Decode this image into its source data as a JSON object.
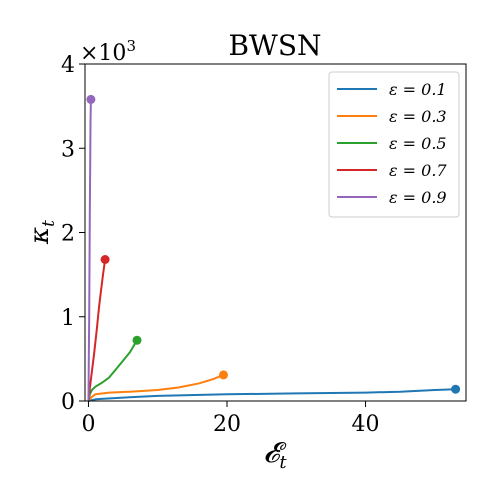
{
  "chart_data": {
    "type": "line",
    "title": "BWSN",
    "xlabel": "𝓔",
    "xlabel_sub": "t",
    "ylabel": "κ",
    "ylabel_sub": "t",
    "y_multiplier": "×10",
    "y_multiplier_exp": "3",
    "xlim": [
      -0.5,
      54.5
    ],
    "ylim": [
      0,
      4
    ],
    "xticks": [
      0,
      20,
      40
    ],
    "xtick_labels": [
      "0",
      "20",
      "40"
    ],
    "yticks": [
      0,
      1,
      2,
      3,
      4
    ],
    "ytick_labels": [
      "0",
      "1",
      "2",
      "3",
      "4"
    ],
    "grid": false,
    "legend_position": "top-right",
    "series": [
      {
        "name": "ε = 0.1",
        "color": "#1f77b4",
        "x": [
          0,
          1,
          5,
          10,
          20,
          30,
          40,
          45,
          50,
          53
        ],
        "y": [
          0.0,
          0.02,
          0.04,
          0.06,
          0.08,
          0.09,
          0.1,
          0.11,
          0.13,
          0.14
        ]
      },
      {
        "name": "ε = 0.3",
        "color": "#ff7f0e",
        "x": [
          0,
          0.5,
          1,
          3,
          6,
          10,
          13,
          16,
          18,
          19.5
        ],
        "y": [
          0.0,
          0.05,
          0.08,
          0.1,
          0.11,
          0.13,
          0.16,
          0.21,
          0.26,
          0.31
        ]
      },
      {
        "name": "ε = 0.5",
        "color": "#2ca02c",
        "x": [
          0,
          0.2,
          0.5,
          1,
          2,
          3,
          4,
          5,
          6,
          7
        ],
        "y": [
          0.0,
          0.08,
          0.13,
          0.17,
          0.22,
          0.28,
          0.38,
          0.48,
          0.58,
          0.72
        ]
      },
      {
        "name": "ε = 0.7",
        "color": "#d62728",
        "x": [
          0,
          0.2,
          0.5,
          0.8,
          1.2,
          1.5,
          1.8,
          2.1,
          2.4
        ],
        "y": [
          0.0,
          0.15,
          0.35,
          0.55,
          0.85,
          1.1,
          1.3,
          1.5,
          1.68
        ]
      },
      {
        "name": "ε = 0.9",
        "color": "#9467bd",
        "x": [
          0,
          0.05,
          0.1,
          0.15,
          0.2,
          0.25,
          0.3,
          0.35
        ],
        "y": [
          0.0,
          0.5,
          1.0,
          1.6,
          2.2,
          2.8,
          3.3,
          3.58
        ]
      }
    ]
  }
}
